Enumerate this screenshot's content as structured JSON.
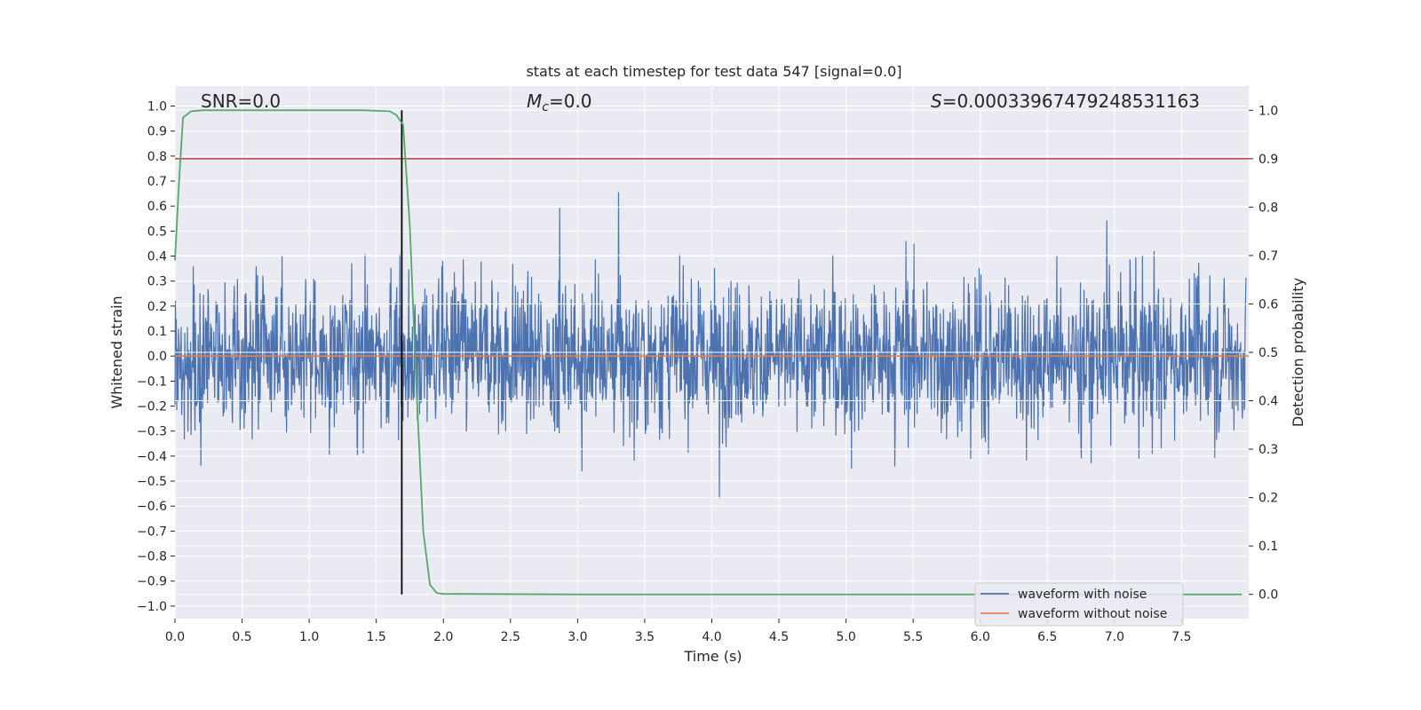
{
  "chart_data": {
    "type": "line",
    "title": "stats at each timestep for test data 547 [signal=0.0]",
    "xlabel": "Time (s)",
    "ylabel": "Whitened strain",
    "y2label": "Detection probability",
    "xlim": [
      0.0,
      8.0
    ],
    "ylim": [
      -1.05,
      1.08
    ],
    "y2lim": [
      -0.05,
      1.05
    ],
    "xticks": [
      "0.0",
      "0.5",
      "1.0",
      "1.5",
      "2.0",
      "2.5",
      "3.0",
      "3.5",
      "4.0",
      "4.5",
      "5.0",
      "5.5",
      "6.0",
      "6.5",
      "7.0",
      "7.5"
    ],
    "yticks": [
      "1.0",
      "0.9",
      "0.8",
      "0.7",
      "0.6",
      "0.5",
      "0.4",
      "0.3",
      "0.2",
      "0.1",
      "0.0",
      "−0.1",
      "−0.2",
      "−0.3",
      "−0.4",
      "−0.5",
      "−0.6",
      "−0.7",
      "−0.8",
      "−0.9",
      "−1.0"
    ],
    "y2ticks": [
      "1.0",
      "0.9",
      "0.8",
      "0.7",
      "0.6",
      "0.5",
      "0.4",
      "0.3",
      "0.2",
      "0.1",
      "0.0"
    ],
    "grid": true,
    "legend": "lower-right",
    "annotations": {
      "snr": "SNR=0.0",
      "mc_symbol": "M",
      "mc_sub": "c",
      "mc_value": "=0.0",
      "s_symbol": "S",
      "s_value": "=0.00033967479248531163"
    },
    "series": [
      {
        "name": "waveform with noise",
        "color": "#4c72b0",
        "kind": "noise",
        "typical_amplitude": 0.38,
        "peak_min": -0.93,
        "peak_max": 1.0
      },
      {
        "name": "waveform without noise",
        "color": "#dd8452",
        "kind": "constant",
        "value": 0.0
      }
    ],
    "probability_curve": {
      "color": "#55a868",
      "x": [
        0.0,
        0.03,
        0.06,
        0.12,
        0.2,
        0.5,
        1.0,
        1.4,
        1.6,
        1.65,
        1.7,
        1.75,
        1.8,
        1.85,
        1.9,
        1.95,
        2.0,
        3.0,
        7.95
      ],
      "y": [
        0.69,
        0.85,
        0.985,
        0.998,
        1.0,
        1.0,
        1.0,
        1.0,
        0.998,
        0.99,
        0.97,
        0.76,
        0.42,
        0.13,
        0.02,
        0.003,
        0.001,
        0.0,
        0.0
      ]
    },
    "threshold": {
      "color": "#c44e52",
      "y2": 0.9
    },
    "marker_line": {
      "color": "#000000",
      "x": 1.69
    }
  }
}
